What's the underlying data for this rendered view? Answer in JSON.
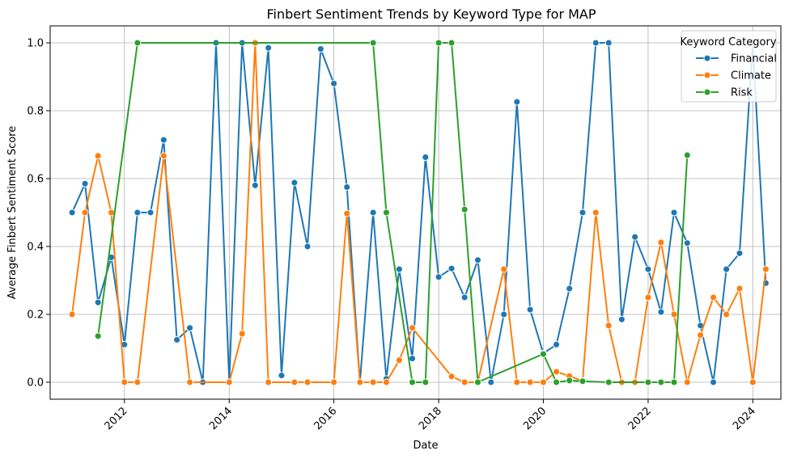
{
  "chart_data": {
    "type": "line",
    "title": "Finbert Sentiment Trends by Keyword Type for MAP",
    "xlabel": "Date",
    "ylabel": "Average Finbert Sentiment Score",
    "x_is_date": true,
    "xlim": [
      "2010-08-01",
      "2024-07-15"
    ],
    "ylim": [
      -0.05,
      1.05
    ],
    "x_ticks": [
      "2012",
      "2014",
      "2016",
      "2018",
      "2020",
      "2022",
      "2024"
    ],
    "y_ticks": [
      "0.0",
      "0.2",
      "0.4",
      "0.6",
      "0.8",
      "1.0"
    ],
    "grid": true,
    "legend": {
      "title": "Keyword Category",
      "placement": "top-right"
    },
    "series": [
      {
        "name": "Financial",
        "color": "#1f77b4",
        "points": [
          [
            "2011-01-01",
            0.5
          ],
          [
            "2011-04-01",
            0.585
          ],
          [
            "2011-07-01",
            0.235
          ],
          [
            "2011-10-01",
            0.368
          ],
          [
            "2012-01-01",
            0.111
          ],
          [
            "2012-04-01",
            0.5
          ],
          [
            "2012-07-01",
            0.5
          ],
          [
            "2012-10-01",
            0.714
          ],
          [
            "2013-01-01",
            0.125
          ],
          [
            "2013-04-01",
            0.16
          ],
          [
            "2013-07-01",
            0.0
          ],
          [
            "2013-10-01",
            1.0
          ],
          [
            "2014-01-01",
            0.0
          ],
          [
            "2014-04-01",
            1.0
          ],
          [
            "2014-07-01",
            0.58
          ],
          [
            "2014-10-01",
            0.985
          ],
          [
            "2015-01-01",
            0.02
          ],
          [
            "2015-04-01",
            0.588
          ],
          [
            "2015-07-01",
            0.4
          ],
          [
            "2015-10-01",
            0.982
          ],
          [
            "2016-01-01",
            0.88
          ],
          [
            "2016-04-01",
            0.575
          ],
          [
            "2016-07-01",
            0.0
          ],
          [
            "2016-10-01",
            0.5
          ],
          [
            "2017-01-01",
            0.01
          ],
          [
            "2017-04-01",
            0.333
          ],
          [
            "2017-07-01",
            0.07
          ],
          [
            "2017-10-01",
            0.663
          ],
          [
            "2018-01-01",
            0.31
          ],
          [
            "2018-04-01",
            0.335
          ],
          [
            "2018-07-01",
            0.25
          ],
          [
            "2018-10-01",
            0.36
          ],
          [
            "2019-01-01",
            0.0
          ],
          [
            "2019-04-01",
            0.2
          ],
          [
            "2019-07-01",
            0.826
          ],
          [
            "2019-10-01",
            0.214
          ],
          [
            "2020-01-01",
            0.085
          ],
          [
            "2020-04-01",
            0.111
          ],
          [
            "2020-07-01",
            0.276
          ],
          [
            "2020-10-01",
            0.5
          ],
          [
            "2021-01-01",
            1.0
          ],
          [
            "2021-04-01",
            1.0
          ],
          [
            "2021-07-01",
            0.185
          ],
          [
            "2021-10-01",
            0.428
          ],
          [
            "2022-01-01",
            0.333
          ],
          [
            "2022-04-01",
            0.207
          ],
          [
            "2022-07-01",
            0.5
          ],
          [
            "2022-10-01",
            0.41
          ],
          [
            "2023-01-01",
            0.167
          ],
          [
            "2023-04-01",
            0.0
          ],
          [
            "2023-07-01",
            0.333
          ],
          [
            "2023-10-01",
            0.38
          ],
          [
            "2024-01-01",
            1.0
          ],
          [
            "2024-04-01",
            0.292
          ]
        ]
      },
      {
        "name": "Climate",
        "color": "#ff7f0e",
        "points": [
          [
            "2011-01-01",
            0.2
          ],
          [
            "2011-04-01",
            0.5
          ],
          [
            "2011-07-01",
            0.667
          ],
          [
            "2011-10-01",
            0.5
          ],
          [
            "2012-01-01",
            0.0
          ],
          [
            "2012-04-01",
            0.0
          ],
          [
            "2012-10-01",
            0.667
          ],
          [
            "2013-04-01",
            0.0
          ],
          [
            "2014-01-01",
            0.0
          ],
          [
            "2014-04-01",
            0.143
          ],
          [
            "2014-07-01",
            1.0
          ],
          [
            "2014-10-01",
            0.0
          ],
          [
            "2015-04-01",
            0.0
          ],
          [
            "2015-07-01",
            0.0
          ],
          [
            "2016-01-01",
            0.0
          ],
          [
            "2016-04-01",
            0.497
          ],
          [
            "2016-07-01",
            0.0
          ],
          [
            "2016-10-01",
            0.0
          ],
          [
            "2017-01-01",
            0.0
          ],
          [
            "2017-04-01",
            0.065
          ],
          [
            "2017-07-01",
            0.16
          ],
          [
            "2018-04-01",
            0.017
          ],
          [
            "2018-07-01",
            0.0
          ],
          [
            "2018-10-01",
            0.0
          ],
          [
            "2019-04-01",
            0.333
          ],
          [
            "2019-07-01",
            0.0
          ],
          [
            "2019-10-01",
            0.0
          ],
          [
            "2020-01-01",
            0.0
          ],
          [
            "2020-04-01",
            0.031
          ],
          [
            "2020-07-01",
            0.018
          ],
          [
            "2020-10-01",
            0.004
          ],
          [
            "2021-01-01",
            0.5
          ],
          [
            "2021-04-01",
            0.167
          ],
          [
            "2021-07-01",
            0.0
          ],
          [
            "2021-10-01",
            0.0
          ],
          [
            "2022-01-01",
            0.25
          ],
          [
            "2022-04-01",
            0.412
          ],
          [
            "2022-07-01",
            0.2
          ],
          [
            "2022-10-01",
            0.0
          ],
          [
            "2023-01-01",
            0.139
          ],
          [
            "2023-04-01",
            0.25
          ],
          [
            "2023-07-01",
            0.2
          ],
          [
            "2023-10-01",
            0.276
          ],
          [
            "2024-01-01",
            0.0
          ],
          [
            "2024-04-01",
            0.333
          ]
        ]
      },
      {
        "name": "Risk",
        "color": "#2ca02c",
        "points": [
          [
            "2011-07-01",
            0.136
          ],
          [
            "2012-04-01",
            1.0
          ],
          [
            "2016-10-01",
            1.0
          ],
          [
            "2017-01-01",
            0.5
          ],
          [
            "2017-07-01",
            0.0
          ],
          [
            "2017-10-01",
            0.0
          ],
          [
            "2018-01-01",
            1.0
          ],
          [
            "2018-04-01",
            1.0
          ],
          [
            "2018-07-01",
            0.509
          ],
          [
            "2018-10-01",
            0.0
          ],
          [
            "2020-01-01",
            0.083
          ],
          [
            "2020-04-01",
            0.0
          ],
          [
            "2020-07-01",
            0.005
          ],
          [
            "2020-10-01",
            0.003
          ],
          [
            "2021-04-01",
            0.0
          ],
          [
            "2022-01-01",
            0.0
          ],
          [
            "2022-04-01",
            0.0
          ],
          [
            "2022-07-01",
            0.0
          ],
          [
            "2022-10-01",
            0.669
          ]
        ]
      }
    ]
  }
}
